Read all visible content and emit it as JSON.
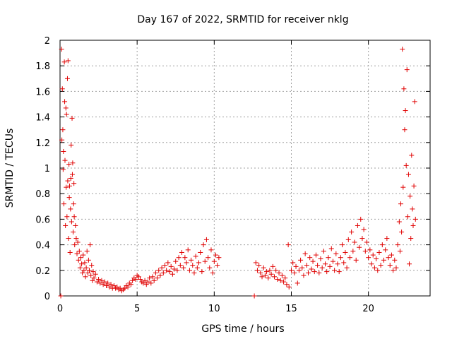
{
  "chart_data": {
    "type": "scatter",
    "title": "Day 167 of 2022, SRMTID for receiver nklg",
    "xlabel": "GPS time / hours",
    "ylabel": "SRMTID / TECUs",
    "xlim": [
      0,
      24
    ],
    "ylim": [
      0,
      2
    ],
    "x_ticks": [
      0,
      5,
      10,
      15,
      20
    ],
    "x_tick_labels": [
      "0",
      "5",
      "10",
      "15",
      "20"
    ],
    "y_ticks": [
      0,
      0.2,
      0.4,
      0.6,
      0.8,
      1,
      1.2,
      1.4,
      1.6,
      1.8,
      2
    ],
    "y_tick_labels": [
      "0",
      "0.2",
      "0.4",
      "0.6",
      "0.8",
      "1",
      "1.2",
      "1.4",
      "1.6",
      "1.8",
      "2"
    ],
    "grid": true,
    "marker": "+",
    "marker_color": "#e00000",
    "series": [
      {
        "name": "SRMTID",
        "points": [
          [
            0.05,
            0.0
          ],
          [
            0.1,
            1.93
          ],
          [
            0.12,
            1.22
          ],
          [
            0.15,
            1.62
          ],
          [
            0.18,
            1.3
          ],
          [
            0.2,
            0.99
          ],
          [
            0.22,
            1.13
          ],
          [
            0.25,
            0.72
          ],
          [
            0.28,
            1.83
          ],
          [
            0.3,
            1.52
          ],
          [
            0.32,
            1.06
          ],
          [
            0.35,
            0.55
          ],
          [
            0.38,
            1.47
          ],
          [
            0.4,
            0.85
          ],
          [
            0.42,
            1.42
          ],
          [
            0.45,
            0.62
          ],
          [
            0.48,
            1.7
          ],
          [
            0.5,
            0.9
          ],
          [
            0.52,
            1.84
          ],
          [
            0.55,
            0.45
          ],
          [
            0.58,
            1.03
          ],
          [
            0.6,
            0.77
          ],
          [
            0.62,
            0.86
          ],
          [
            0.65,
            0.34
          ],
          [
            0.68,
            0.68
          ],
          [
            0.7,
            0.92
          ],
          [
            0.72,
            1.18
          ],
          [
            0.75,
            0.58
          ],
          [
            0.78,
            1.39
          ],
          [
            0.8,
            0.95
          ],
          [
            0.82,
            1.04
          ],
          [
            0.85,
            0.5
          ],
          [
            0.88,
            0.72
          ],
          [
            0.9,
            0.88
          ],
          [
            0.92,
            0.62
          ],
          [
            0.95,
            0.4
          ],
          [
            1.0,
            0.55
          ],
          [
            1.05,
            0.45
          ],
          [
            1.1,
            0.33
          ],
          [
            1.15,
            0.42
          ],
          [
            1.2,
            0.28
          ],
          [
            1.25,
            0.35
          ],
          [
            1.3,
            0.22
          ],
          [
            1.35,
            0.3
          ],
          [
            1.4,
            0.25
          ],
          [
            1.45,
            0.18
          ],
          [
            1.5,
            0.32
          ],
          [
            1.55,
            0.2
          ],
          [
            1.6,
            0.26
          ],
          [
            1.65,
            0.15
          ],
          [
            1.7,
            0.22
          ],
          [
            1.75,
            0.35
          ],
          [
            1.8,
            0.18
          ],
          [
            1.85,
            0.28
          ],
          [
            1.9,
            0.2
          ],
          [
            1.95,
            0.4
          ],
          [
            2.0,
            0.16
          ],
          [
            2.05,
            0.24
          ],
          [
            2.1,
            0.12
          ],
          [
            2.15,
            0.19
          ],
          [
            2.2,
            0.14
          ],
          [
            2.3,
            0.17
          ],
          [
            2.4,
            0.11
          ],
          [
            2.5,
            0.13
          ],
          [
            2.6,
            0.1
          ],
          [
            2.7,
            0.12
          ],
          [
            2.8,
            0.09
          ],
          [
            2.9,
            0.11
          ],
          [
            3.0,
            0.08
          ],
          [
            3.1,
            0.1
          ],
          [
            3.2,
            0.07
          ],
          [
            3.3,
            0.09
          ],
          [
            3.4,
            0.06
          ],
          [
            3.5,
            0.08
          ],
          [
            3.6,
            0.06
          ],
          [
            3.7,
            0.07
          ],
          [
            3.8,
            0.05
          ],
          [
            3.9,
            0.06
          ],
          [
            4.0,
            0.04
          ],
          [
            4.1,
            0.05
          ],
          [
            4.2,
            0.06
          ],
          [
            4.3,
            0.08
          ],
          [
            4.4,
            0.07
          ],
          [
            4.5,
            0.1
          ],
          [
            4.6,
            0.09
          ],
          [
            4.7,
            0.12
          ],
          [
            4.8,
            0.14
          ],
          [
            4.9,
            0.13
          ],
          [
            5.0,
            0.16
          ],
          [
            5.1,
            0.15
          ],
          [
            5.2,
            0.13
          ],
          [
            5.3,
            0.11
          ],
          [
            5.4,
            0.1
          ],
          [
            5.5,
            0.12
          ],
          [
            5.6,
            0.09
          ],
          [
            5.7,
            0.11
          ],
          [
            5.8,
            0.14
          ],
          [
            5.9,
            0.1
          ],
          [
            6.0,
            0.15
          ],
          [
            6.1,
            0.12
          ],
          [
            6.2,
            0.18
          ],
          [
            6.3,
            0.14
          ],
          [
            6.4,
            0.2
          ],
          [
            6.5,
            0.16
          ],
          [
            6.6,
            0.22
          ],
          [
            6.7,
            0.18
          ],
          [
            6.8,
            0.24
          ],
          [
            6.9,
            0.2
          ],
          [
            7.0,
            0.26
          ],
          [
            7.1,
            0.19
          ],
          [
            7.2,
            0.23
          ],
          [
            7.3,
            0.17
          ],
          [
            7.4,
            0.21
          ],
          [
            7.5,
            0.27
          ],
          [
            7.6,
            0.2
          ],
          [
            7.7,
            0.3
          ],
          [
            7.8,
            0.24
          ],
          [
            7.9,
            0.34
          ],
          [
            8.0,
            0.22
          ],
          [
            8.1,
            0.3
          ],
          [
            8.2,
            0.26
          ],
          [
            8.3,
            0.36
          ],
          [
            8.4,
            0.2
          ],
          [
            8.5,
            0.28
          ],
          [
            8.6,
            0.24
          ],
          [
            8.7,
            0.18
          ],
          [
            8.8,
            0.31
          ],
          [
            8.9,
            0.22
          ],
          [
            9.0,
            0.26
          ],
          [
            9.1,
            0.34
          ],
          [
            9.2,
            0.19
          ],
          [
            9.3,
            0.4
          ],
          [
            9.4,
            0.27
          ],
          [
            9.5,
            0.44
          ],
          [
            9.6,
            0.3
          ],
          [
            9.7,
            0.22
          ],
          [
            9.8,
            0.36
          ],
          [
            9.9,
            0.18
          ],
          [
            10.0,
            0.27
          ],
          [
            10.1,
            0.32
          ],
          [
            10.2,
            0.24
          ],
          [
            10.3,
            0.3
          ],
          [
            12.6,
            0.0
          ],
          [
            12.7,
            0.26
          ],
          [
            12.8,
            0.2
          ],
          [
            12.9,
            0.24
          ],
          [
            13.0,
            0.18
          ],
          [
            13.1,
            0.15
          ],
          [
            13.2,
            0.22
          ],
          [
            13.3,
            0.16
          ],
          [
            13.4,
            0.19
          ],
          [
            13.5,
            0.14
          ],
          [
            13.6,
            0.2
          ],
          [
            13.7,
            0.17
          ],
          [
            13.8,
            0.23
          ],
          [
            13.9,
            0.15
          ],
          [
            14.0,
            0.2
          ],
          [
            14.1,
            0.13
          ],
          [
            14.2,
            0.18
          ],
          [
            14.3,
            0.12
          ],
          [
            14.4,
            0.16
          ],
          [
            14.5,
            0.11
          ],
          [
            14.6,
            0.14
          ],
          [
            14.7,
            0.09
          ],
          [
            14.8,
            0.4
          ],
          [
            14.85,
            0.07
          ],
          [
            15.0,
            0.2
          ],
          [
            15.1,
            0.26
          ],
          [
            15.2,
            0.18
          ],
          [
            15.3,
            0.23
          ],
          [
            15.4,
            0.1
          ],
          [
            15.5,
            0.2
          ],
          [
            15.6,
            0.28
          ],
          [
            15.7,
            0.22
          ],
          [
            15.8,
            0.16
          ],
          [
            15.9,
            0.33
          ],
          [
            16.0,
            0.24
          ],
          [
            16.1,
            0.18
          ],
          [
            16.2,
            0.3
          ],
          [
            16.3,
            0.21
          ],
          [
            16.4,
            0.27
          ],
          [
            16.5,
            0.19
          ],
          [
            16.6,
            0.32
          ],
          [
            16.7,
            0.24
          ],
          [
            16.8,
            0.18
          ],
          [
            16.9,
            0.29
          ],
          [
            17.0,
            0.22
          ],
          [
            17.1,
            0.35
          ],
          [
            17.2,
            0.25
          ],
          [
            17.3,
            0.19
          ],
          [
            17.4,
            0.3
          ],
          [
            17.5,
            0.23
          ],
          [
            17.6,
            0.37
          ],
          [
            17.7,
            0.27
          ],
          [
            17.8,
            0.2
          ],
          [
            17.9,
            0.33
          ],
          [
            18.0,
            0.25
          ],
          [
            18.1,
            0.19
          ],
          [
            18.2,
            0.3
          ],
          [
            18.3,
            0.4
          ],
          [
            18.4,
            0.26
          ],
          [
            18.5,
            0.34
          ],
          [
            18.6,
            0.22
          ],
          [
            18.7,
            0.44
          ],
          [
            18.8,
            0.3
          ],
          [
            18.9,
            0.5
          ],
          [
            19.0,
            0.35
          ],
          [
            19.1,
            0.42
          ],
          [
            19.2,
            0.28
          ],
          [
            19.3,
            0.55
          ],
          [
            19.4,
            0.38
          ],
          [
            19.5,
            0.6
          ],
          [
            19.6,
            0.45
          ],
          [
            19.7,
            0.52
          ],
          [
            19.8,
            0.35
          ],
          [
            19.9,
            0.42
          ],
          [
            20.0,
            0.3
          ],
          [
            20.1,
            0.36
          ],
          [
            20.2,
            0.25
          ],
          [
            20.3,
            0.32
          ],
          [
            20.4,
            0.22
          ],
          [
            20.5,
            0.29
          ],
          [
            20.6,
            0.2
          ],
          [
            20.7,
            0.34
          ],
          [
            20.8,
            0.24
          ],
          [
            20.9,
            0.4
          ],
          [
            21.0,
            0.28
          ],
          [
            21.1,
            0.36
          ],
          [
            21.2,
            0.45
          ],
          [
            21.3,
            0.3
          ],
          [
            21.4,
            0.24
          ],
          [
            21.5,
            0.32
          ],
          [
            21.6,
            0.2
          ],
          [
            21.7,
            0.28
          ],
          [
            21.8,
            0.22
          ],
          [
            21.9,
            0.4
          ],
          [
            22.0,
            0.58
          ],
          [
            22.05,
            0.35
          ],
          [
            22.1,
            0.72
          ],
          [
            22.15,
            0.5
          ],
          [
            22.2,
            1.93
          ],
          [
            22.25,
            0.85
          ],
          [
            22.3,
            1.62
          ],
          [
            22.35,
            1.3
          ],
          [
            22.4,
            1.45
          ],
          [
            22.45,
            1.02
          ],
          [
            22.5,
            1.77
          ],
          [
            22.55,
            0.62
          ],
          [
            22.6,
            0.95
          ],
          [
            22.65,
            0.25
          ],
          [
            22.7,
            0.78
          ],
          [
            22.75,
            0.45
          ],
          [
            22.8,
            1.1
          ],
          [
            22.85,
            0.68
          ],
          [
            22.9,
            0.55
          ],
          [
            22.95,
            0.86
          ],
          [
            23.0,
            1.52
          ],
          [
            23.05,
            0.6
          ]
        ]
      }
    ]
  }
}
